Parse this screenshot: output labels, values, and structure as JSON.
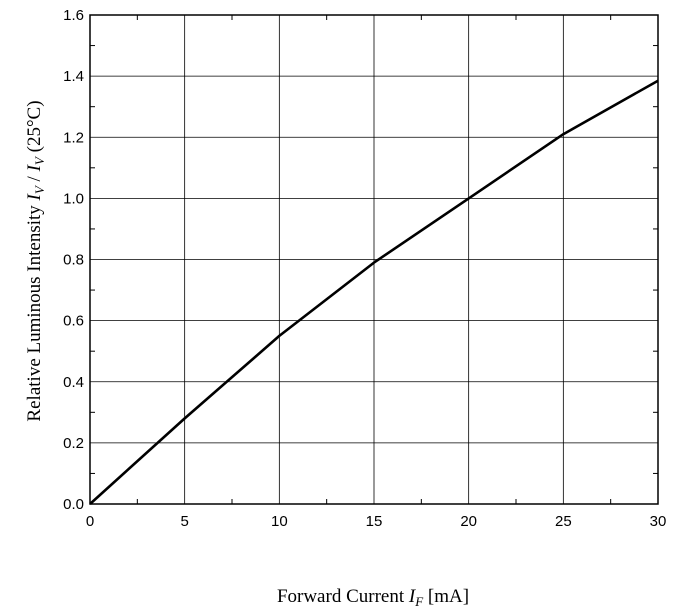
{
  "chart_data": {
    "type": "line",
    "title": "",
    "xlabel": {
      "prefix": "Forward Current ",
      "symbol": "I",
      "subscript": "F",
      "suffix": " [mA]"
    },
    "ylabel": {
      "prefix": "Relative  Luminous  Intensity  ",
      "symbol1": "I",
      "subscript1": "V",
      "separator": "  /  ",
      "symbol2": "I",
      "subscript2": "V",
      "suffix": "  (25°C)"
    },
    "xlim": [
      0,
      30
    ],
    "ylim": [
      0,
      1.6
    ],
    "x_ticks": [
      "0",
      "5",
      "10",
      "15",
      "20",
      "25",
      "30"
    ],
    "y_ticks": [
      "0.0",
      "0.2",
      "0.4",
      "0.6",
      "0.8",
      "1.0",
      "1.2",
      "1.4",
      "1.6"
    ],
    "grid": true,
    "series": [
      {
        "x": [
          0,
          5,
          10,
          15,
          20,
          25,
          30
        ],
        "y": [
          0.0,
          0.28,
          0.55,
          0.79,
          1.0,
          1.21,
          1.385
        ]
      }
    ]
  }
}
